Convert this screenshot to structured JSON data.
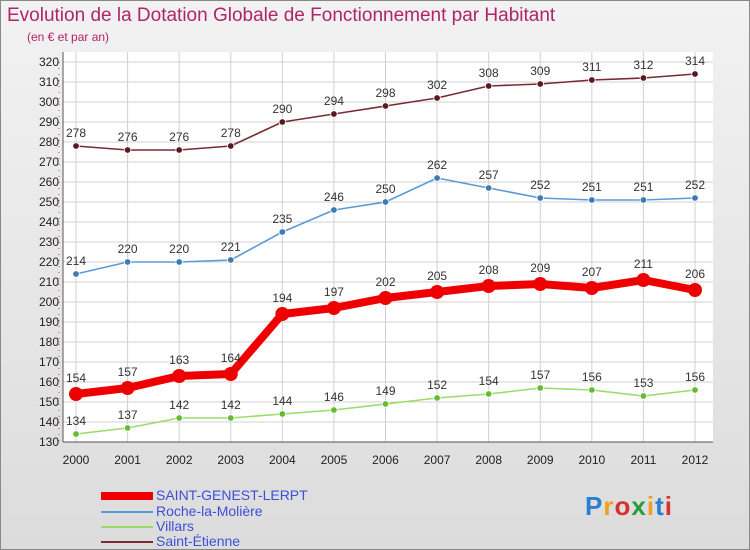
{
  "chart_data": {
    "type": "line",
    "title": "Evolution de la Dotation Globale de Fonctionnement par Habitant",
    "subtitle": "(en € et par an)",
    "categories": [
      "2000",
      "2001",
      "2002",
      "2003",
      "2004",
      "2005",
      "2006",
      "2007",
      "2008",
      "2009",
      "2010",
      "2011",
      "2012"
    ],
    "ylim": [
      130,
      320
    ],
    "yticks": [
      130,
      140,
      150,
      160,
      170,
      180,
      190,
      200,
      210,
      220,
      230,
      240,
      250,
      260,
      270,
      280,
      290,
      300,
      310,
      320
    ],
    "grid": true,
    "series": [
      {
        "name": "SAINT-GENEST-LERPT",
        "color": "#ee0000",
        "values": [
          154,
          157,
          163,
          164,
          194,
          197,
          202,
          205,
          208,
          209,
          207,
          211,
          206
        ]
      },
      {
        "name": "Roche-la-Molière",
        "color": "#5b9bd5",
        "values": [
          214,
          220,
          220,
          221,
          235,
          246,
          250,
          262,
          257,
          252,
          251,
          251,
          252
        ]
      },
      {
        "name": "Villars",
        "color": "#99dd66",
        "values": [
          134,
          137,
          142,
          142,
          144,
          146,
          149,
          152,
          154,
          157,
          156,
          153,
          156
        ]
      },
      {
        "name": "Saint-Étienne",
        "color": "#7a2a32",
        "values": [
          278,
          276,
          276,
          278,
          290,
          294,
          298,
          302,
          308,
          309,
          311,
          312,
          314
        ]
      }
    ]
  },
  "logo": {
    "letters": [
      "P",
      "r",
      "o",
      "x",
      "i",
      "t",
      "i"
    ]
  }
}
